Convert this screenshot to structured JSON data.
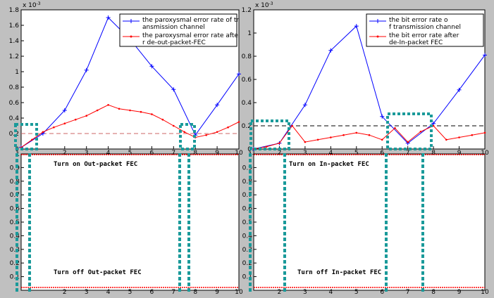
{
  "chart_data": [
    {
      "type": "line",
      "exponent_label": "x 10",
      "exponent_power": "-3",
      "xlim": [
        0,
        10
      ],
      "ylim": [
        0,
        1.8
      ],
      "x_ticks": [
        "2",
        "3",
        "4",
        "5",
        "6",
        "7",
        "8",
        "9",
        "10"
      ],
      "y_ticks": [
        "0",
        "0.2",
        "0.4",
        "0.6",
        "0.8",
        "1",
        "1.2",
        "1.4",
        "1.6",
        "1.8"
      ],
      "series": [
        {
          "name": "the paroxysmal error rate of transmission channel",
          "color": "#0000ff",
          "x": [
            0,
            1,
            2,
            3,
            4,
            5,
            6,
            7,
            8,
            9,
            10
          ],
          "y": [
            0.02,
            0.2,
            0.5,
            1.02,
            1.7,
            1.42,
            1.07,
            0.77,
            0.18,
            0.57,
            0.97
          ]
        },
        {
          "name": "the paroxysmal error rate after de-out-packet-FEC",
          "color": "#ff0000",
          "x": [
            0,
            0.5,
            1,
            1.5,
            2,
            2.5,
            3,
            3.5,
            4,
            4.5,
            5,
            5.5,
            6,
            6.5,
            7,
            7.5,
            8,
            8.5,
            9,
            9.5,
            10
          ],
          "y": [
            0.02,
            0.12,
            0.22,
            0.28,
            0.33,
            0.38,
            0.43,
            0.5,
            0.57,
            0.52,
            0.5,
            0.48,
            0.45,
            0.38,
            0.3,
            0.22,
            0.15,
            0.18,
            0.22,
            0.28,
            0.35
          ]
        }
      ],
      "threshold": 0.2,
      "switch_panel": {
        "y_ticks": [
          "0.1",
          "0.2",
          "0.3",
          "0.4",
          "0.5",
          "0.6",
          "0.7",
          "0.8",
          "0.9",
          "1"
        ],
        "x_ticks": [
          "2",
          "3",
          "4",
          "5",
          "6",
          "7",
          "8",
          "9",
          "10"
        ],
        "on_label": "Turn on Out-packet FEC",
        "off_label": "Turn off Out-packet FEC"
      }
    },
    {
      "type": "line",
      "exponent_label": "x 10",
      "exponent_power": "-3",
      "xlim": [
        1,
        10
      ],
      "ylim": [
        0,
        1.2
      ],
      "x_ticks": [
        "1",
        "2",
        "3",
        "4",
        "5",
        "6",
        "7",
        "8",
        "9",
        "10"
      ],
      "y_ticks": [
        "0",
        "0.2",
        "0.4",
        "0.6",
        "0.8",
        "1",
        "1.2"
      ],
      "series": [
        {
          "name": "the bit error rate of transmission channel",
          "color": "#0000ff",
          "x": [
            1,
            2,
            3,
            4,
            5,
            6,
            7,
            8,
            9,
            10
          ],
          "y": [
            0.0,
            0.05,
            0.38,
            0.85,
            1.06,
            0.28,
            0.05,
            0.22,
            0.51,
            0.81
          ]
        },
        {
          "name": "the bit error rate after de-In-packet FEC",
          "color": "#ff0000",
          "x": [
            1,
            1.5,
            2,
            2.5,
            3,
            3.5,
            4,
            4.5,
            5,
            5.5,
            6,
            6.5,
            7,
            7.5,
            8,
            8.5,
            9,
            9.5,
            10
          ],
          "y": [
            0.0,
            0.02,
            0.05,
            0.2,
            0.06,
            0.08,
            0.1,
            0.12,
            0.14,
            0.12,
            0.08,
            0.18,
            0.06,
            0.15,
            0.2,
            0.08,
            0.1,
            0.12,
            0.14
          ]
        }
      ],
      "threshold": 0.2,
      "switch_panel": {
        "y_ticks": [
          "0.1",
          "0.2",
          "0.3",
          "0.4",
          "0.5",
          "0.6",
          "0.7",
          "0.8",
          "0.9",
          "1"
        ],
        "x_ticks": [
          "2",
          "3",
          "4",
          "5",
          "6",
          "7",
          "8",
          "9",
          "10"
        ],
        "on_label": "Turn on In-packet FEC",
        "off_label": "Turn off In-packet FEC"
      }
    }
  ]
}
